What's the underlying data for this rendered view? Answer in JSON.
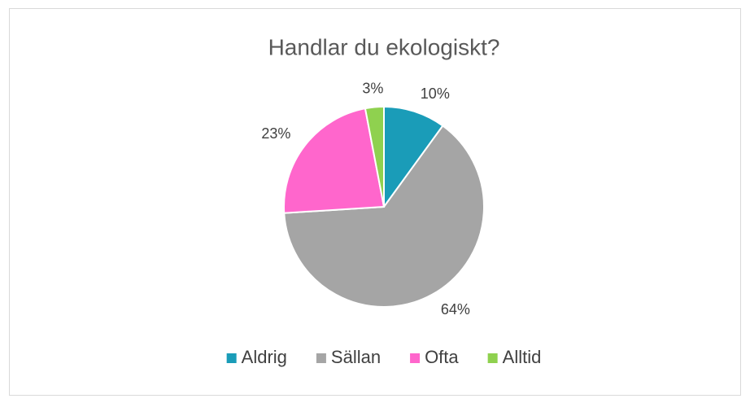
{
  "chart_data": {
    "type": "pie",
    "title": "Handlar du ekologiskt?",
    "categories": [
      "Aldrig",
      "Sällan",
      "Ofta",
      "Alltid"
    ],
    "values": [
      10,
      64,
      23,
      3
    ],
    "value_labels": [
      "10%",
      "64%",
      "23%",
      "3%"
    ],
    "colors": [
      "#1a9cb8",
      "#a5a5a5",
      "#ff66cc",
      "#8fd14f"
    ],
    "legend": "bottom"
  }
}
